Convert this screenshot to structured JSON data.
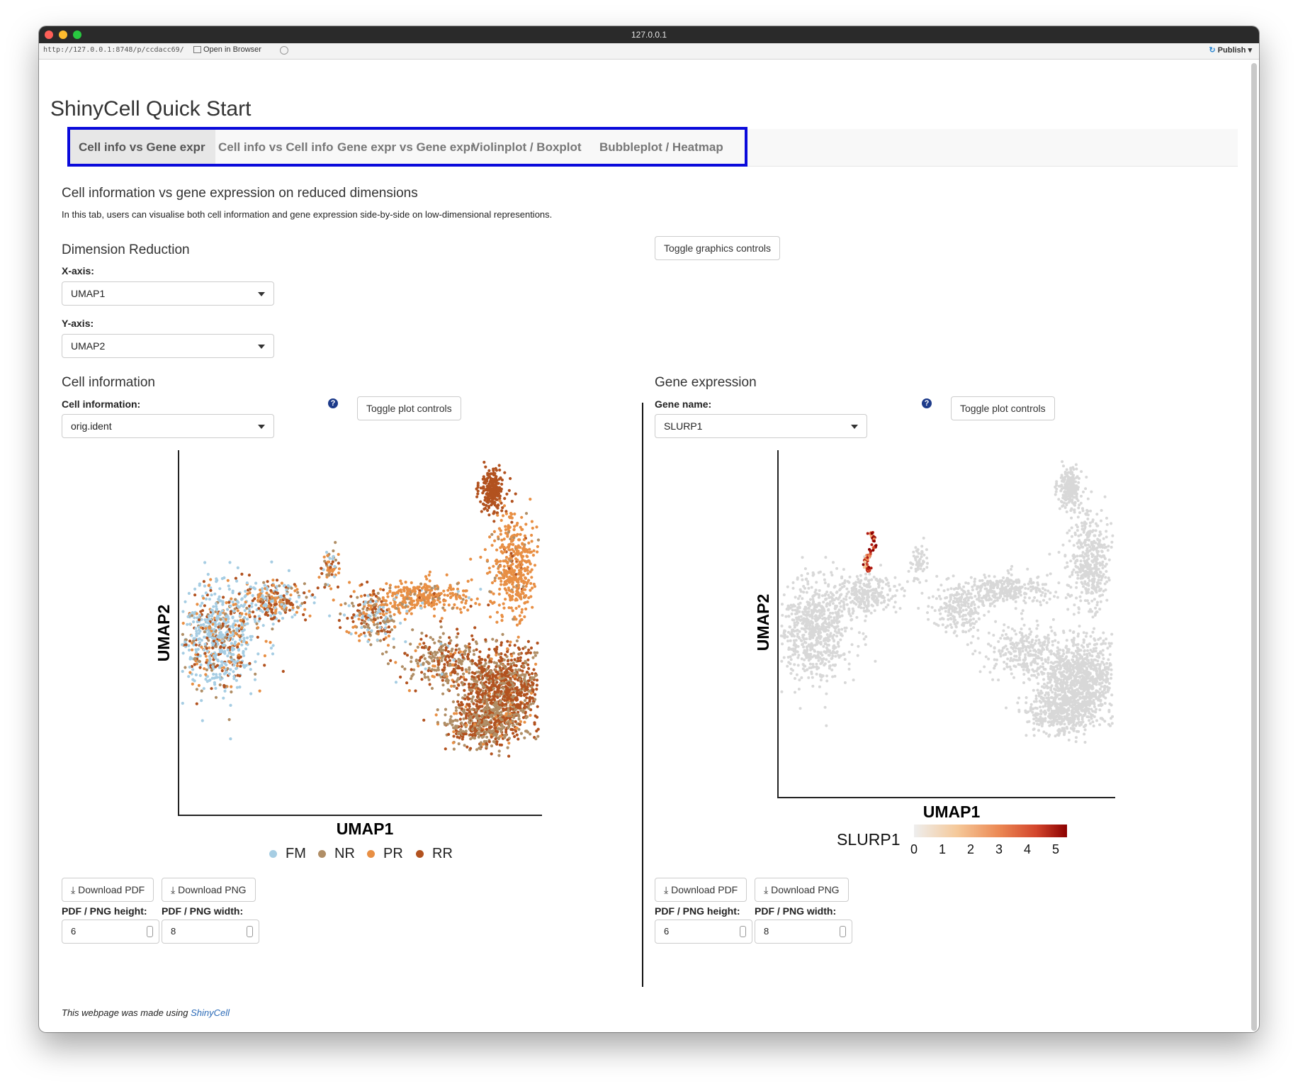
{
  "window": {
    "title": "127.0.0.1"
  },
  "addressbar": {
    "url": "http://127.0.0.1:8748/p/ccdacc69/",
    "open_label": "Open in Browser",
    "publish_label": "Publish"
  },
  "app": {
    "title": "ShinyCell Quick Start"
  },
  "tabs": [
    {
      "label": "Cell info vs Gene expr",
      "active": true
    },
    {
      "label": "Cell info vs Cell info",
      "active": false
    },
    {
      "label": "Gene expr vs Gene expr",
      "active": false
    },
    {
      "label": "Violinplot / Boxplot",
      "active": false
    },
    {
      "label": "Bubbleplot / Heatmap",
      "active": false
    }
  ],
  "section": {
    "heading": "Cell information vs gene expression on reduced dimensions",
    "description": "In this tab, users can visualise both cell information and gene expression side-by-side on low-dimensional representions."
  },
  "dimred": {
    "heading": "Dimension Reduction",
    "xaxis_label": "X-axis:",
    "xaxis_value": "UMAP1",
    "yaxis_label": "Y-axis:",
    "yaxis_value": "UMAP2",
    "toggle_graphics": "Toggle graphics controls"
  },
  "cellinfo": {
    "heading": "Cell information",
    "select_label": "Cell information:",
    "select_value": "orig.ident",
    "help": "?",
    "toggle_plot": "Toggle plot controls",
    "xlabel": "UMAP1",
    "ylabel": "UMAP2",
    "legend": [
      {
        "name": "FM",
        "color": "#a6cde3"
      },
      {
        "name": "NR",
        "color": "#b08e66"
      },
      {
        "name": "PR",
        "color": "#e88f44"
      },
      {
        "name": "RR",
        "color": "#b2521f"
      }
    ],
    "download_pdf": "Download PDF",
    "download_png": "Download PNG",
    "height_label": "PDF / PNG height:",
    "width_label": "PDF / PNG width:",
    "height_value": "6",
    "width_value": "8"
  },
  "geneexpr": {
    "heading": "Gene expression",
    "select_label": "Gene name:",
    "select_value": "SLURP1",
    "help": "?",
    "toggle_plot": "Toggle plot controls",
    "xlabel": "UMAP1",
    "ylabel": "UMAP2",
    "colorbar_title": "SLURP1",
    "colorbar_ticks": [
      "0",
      "1",
      "2",
      "3",
      "4",
      "5"
    ],
    "colorbar_colors": [
      "#eeeeee",
      "#f5c99a",
      "#ec8a55",
      "#d3452c",
      "#8b0000"
    ],
    "download_pdf": "Download PDF",
    "download_png": "Download PNG",
    "height_label": "PDF / PNG height:",
    "width_label": "PDF / PNG width:",
    "height_value": "6",
    "width_value": "8"
  },
  "footer": {
    "prefix": "This webpage was made using ",
    "link": "ShinyCell"
  }
}
